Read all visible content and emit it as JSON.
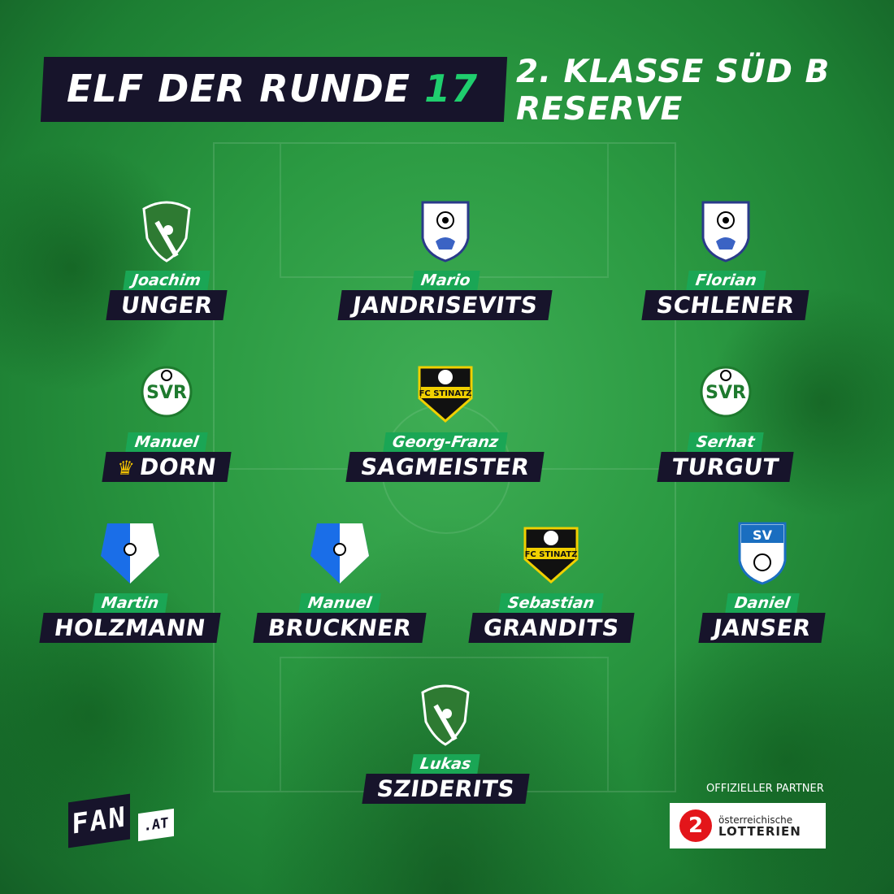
{
  "header": {
    "title": "ELF DER RUNDE",
    "round": "17",
    "league_line1": "2. KLASSE SÜD B",
    "league_line2": "RESERVE"
  },
  "players": [
    {
      "first": "Joachim",
      "last": "UNGER",
      "club": "sv-st-michael"
    },
    {
      "first": "Mario",
      "last": "JANDRISEVITS",
      "club": "fc-sulz"
    },
    {
      "first": "Florian",
      "last": "SCHLENER",
      "club": "fc-sulz"
    },
    {
      "first": "Manuel",
      "last": "DORN",
      "club": "svr-1966",
      "captain": true
    },
    {
      "first": "Georg-Franz",
      "last": "SAGMEISTER",
      "club": "fc-stinatz"
    },
    {
      "first": "Serhat",
      "last": "TURGUT",
      "club": "svr-1966"
    },
    {
      "first": "Martin",
      "last": "HOLZMANN",
      "club": "askoe-wallendorf"
    },
    {
      "first": "Manuel",
      "last": "BRUCKNER",
      "club": "askoe-wallendorf"
    },
    {
      "first": "Sebastian",
      "last": "GRANDITS",
      "club": "fc-stinatz"
    },
    {
      "first": "Daniel",
      "last": "JANSER",
      "club": "sv-eltendorf"
    },
    {
      "first": "Lukas",
      "last": "SZIDERITS",
      "club": "sv-st-michael"
    }
  ],
  "footer": {
    "brand": "FAN",
    "brand_suffix": ".AT",
    "partner_label": "OFFIZIELLER PARTNER",
    "partner_line1": "österreichische",
    "partner_line2": "LOTTERIEN"
  },
  "colors": {
    "accent": "#1fce6e",
    "dark": "#17142b",
    "captain": "#f2c200"
  }
}
